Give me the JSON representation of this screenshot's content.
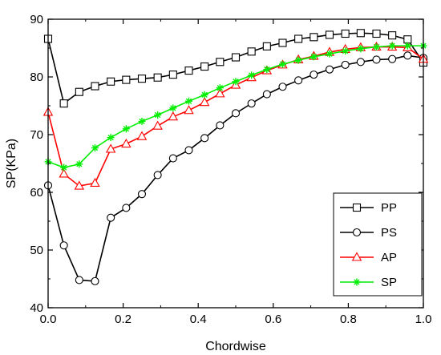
{
  "chart_data": {
    "type": "line",
    "xlabel": "Chordwise",
    "ylabel": "SP(KPa)",
    "xlim": [
      0.0,
      1.0
    ],
    "ylim": [
      40,
      90
    ],
    "xticks": [
      0.0,
      0.2,
      0.4,
      0.6,
      0.8,
      1.0
    ],
    "xtick_labels": [
      "0.0",
      "0.2",
      "0.4",
      "0.6",
      "0.8",
      "1.0"
    ],
    "yticks": [
      40,
      50,
      60,
      70,
      80,
      90
    ],
    "ytick_labels": [
      "40",
      "50",
      "60",
      "70",
      "80",
      "90"
    ],
    "grid": false,
    "legend_position": "bottom-right",
    "series": [
      {
        "name": "PP",
        "color": "#000000",
        "marker": "square",
        "x": [
          0.0,
          0.042,
          0.083,
          0.125,
          0.167,
          0.208,
          0.25,
          0.292,
          0.333,
          0.375,
          0.417,
          0.458,
          0.5,
          0.542,
          0.583,
          0.625,
          0.667,
          0.708,
          0.75,
          0.792,
          0.833,
          0.875,
          0.917,
          0.958,
          1.0
        ],
        "values": [
          86.6,
          75.4,
          77.4,
          78.4,
          79.2,
          79.5,
          79.7,
          79.9,
          80.4,
          81.1,
          81.8,
          82.6,
          83.4,
          84.4,
          85.3,
          85.9,
          86.6,
          86.9,
          87.3,
          87.5,
          87.6,
          87.5,
          87.2,
          86.5,
          82.5
        ]
      },
      {
        "name": "PS",
        "color": "#000000",
        "marker": "circle",
        "x": [
          0.0,
          0.042,
          0.083,
          0.125,
          0.167,
          0.208,
          0.25,
          0.292,
          0.333,
          0.375,
          0.417,
          0.458,
          0.5,
          0.542,
          0.583,
          0.625,
          0.667,
          0.708,
          0.75,
          0.792,
          0.833,
          0.875,
          0.917,
          0.958,
          1.0
        ],
        "values": [
          61.2,
          50.8,
          44.8,
          44.6,
          55.6,
          57.3,
          59.7,
          63.0,
          65.9,
          67.3,
          69.4,
          71.6,
          73.7,
          75.4,
          77.0,
          78.3,
          79.4,
          80.4,
          81.3,
          82.1,
          82.6,
          83.0,
          83.1,
          83.7,
          83.3
        ]
      },
      {
        "name": "AP",
        "color": "#ff0000",
        "marker": "triangle",
        "x": [
          0.0,
          0.042,
          0.083,
          0.125,
          0.167,
          0.208,
          0.25,
          0.292,
          0.333,
          0.375,
          0.417,
          0.458,
          0.5,
          0.542,
          0.583,
          0.625,
          0.667,
          0.708,
          0.75,
          0.792,
          0.833,
          0.875,
          0.917,
          0.958,
          1.0
        ],
        "values": [
          73.9,
          63.2,
          61.1,
          61.6,
          67.5,
          68.4,
          69.7,
          71.5,
          73.1,
          74.2,
          75.6,
          77.1,
          78.6,
          79.9,
          81.1,
          82.1,
          83.0,
          83.6,
          84.3,
          84.8,
          85.1,
          85.2,
          85.2,
          85.1,
          83.1
        ]
      },
      {
        "name": "SP",
        "color": "#00ee00",
        "marker": "asterisk",
        "x": [
          0.0,
          0.042,
          0.083,
          0.125,
          0.167,
          0.208,
          0.25,
          0.292,
          0.333,
          0.375,
          0.417,
          0.458,
          0.5,
          0.542,
          0.583,
          0.625,
          0.667,
          0.708,
          0.75,
          0.792,
          0.833,
          0.875,
          0.917,
          0.958,
          1.0
        ],
        "values": [
          65.3,
          64.3,
          64.9,
          67.7,
          69.5,
          71.0,
          72.3,
          73.4,
          74.6,
          75.8,
          76.9,
          78.1,
          79.2,
          80.3,
          81.3,
          82.2,
          82.9,
          83.5,
          84.0,
          84.5,
          84.9,
          85.2,
          85.4,
          85.4,
          85.4
        ]
      }
    ]
  }
}
